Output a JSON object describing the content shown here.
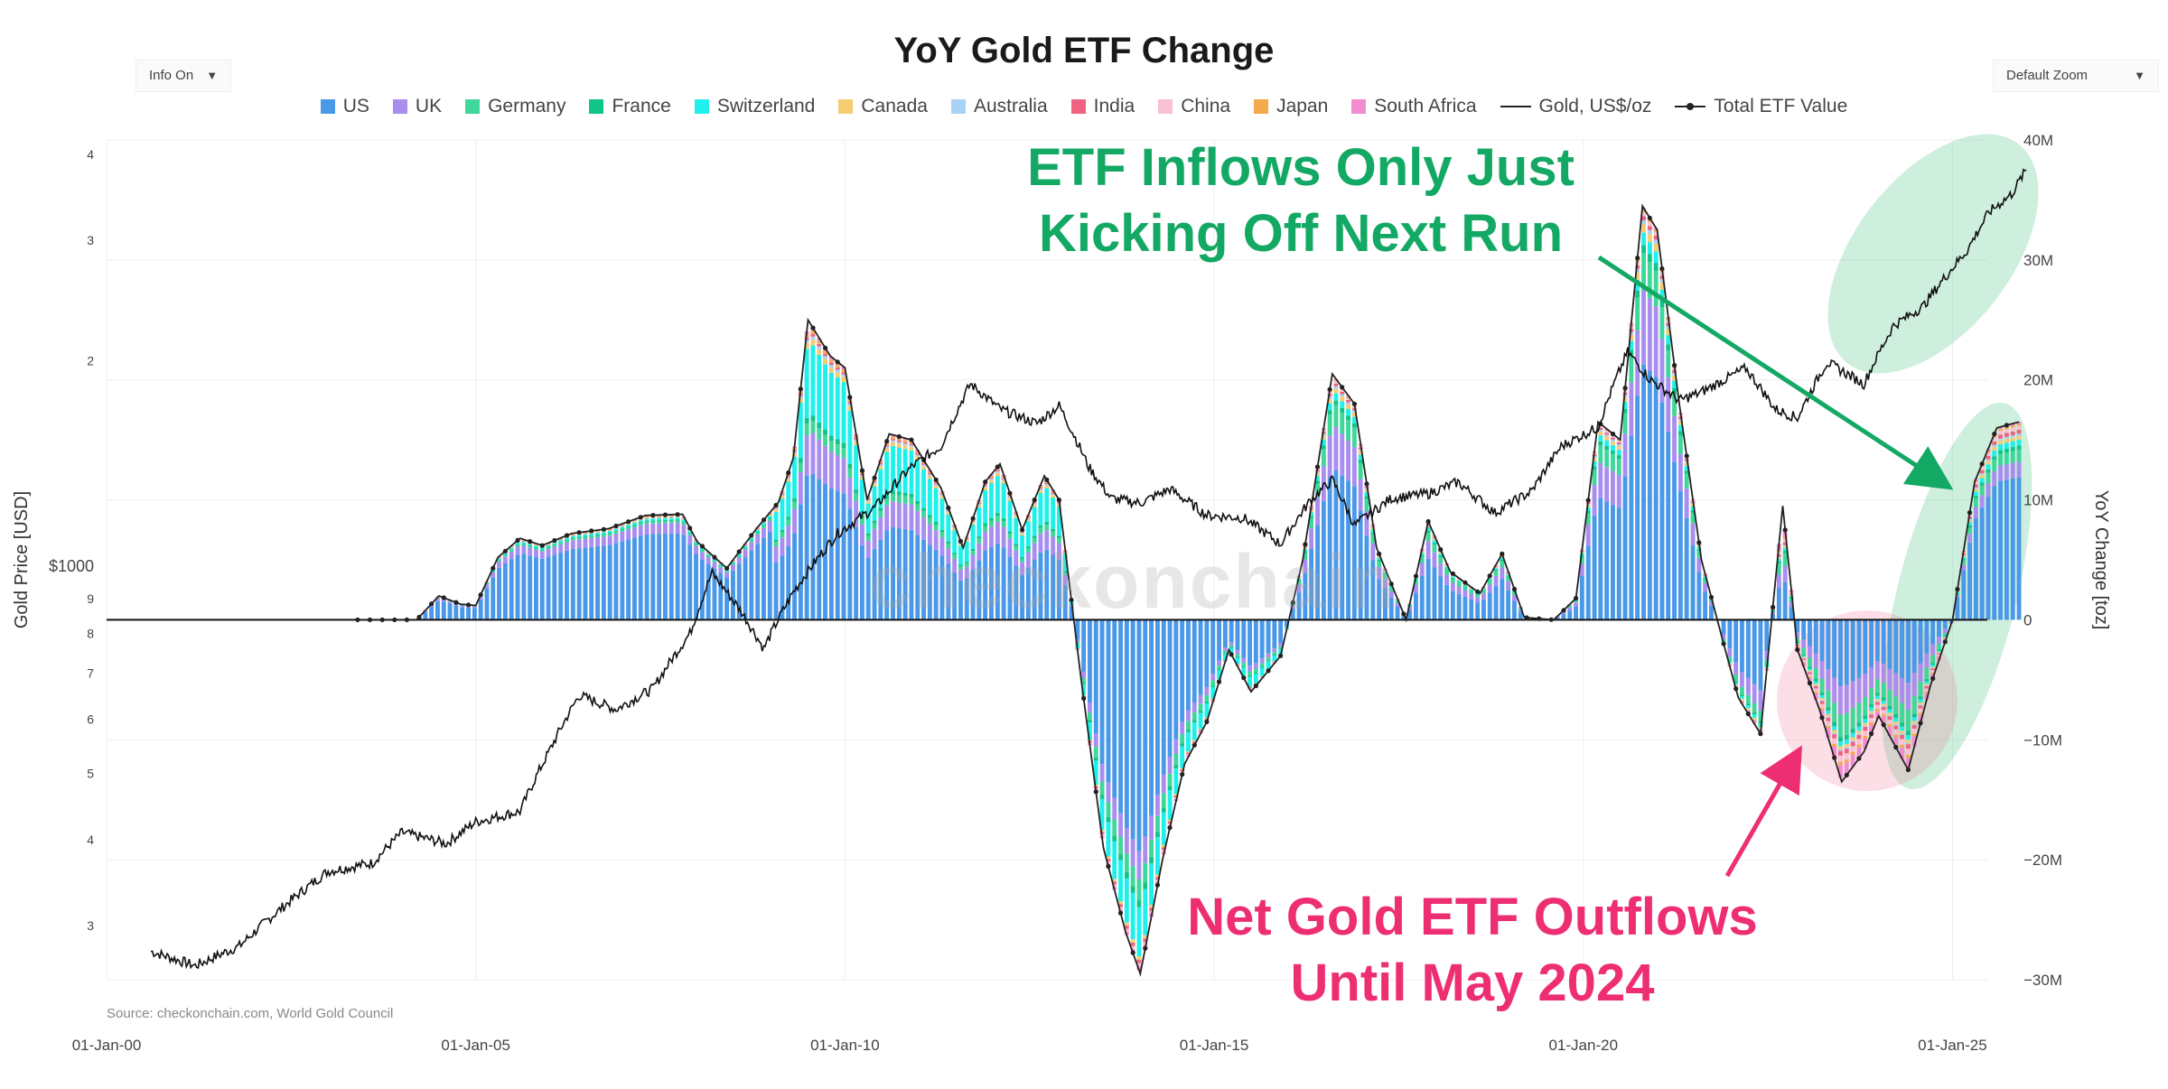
{
  "title": "YoY Gold ETF Change",
  "controls": {
    "info": "Info On",
    "zoom": "Default Zoom"
  },
  "legend": [
    {
      "name": "US",
      "color": "#4a98e8",
      "kind": "bar"
    },
    {
      "name": "UK",
      "color": "#a98ef0",
      "kind": "bar"
    },
    {
      "name": "Germany",
      "color": "#3fd79a",
      "kind": "bar"
    },
    {
      "name": "France",
      "color": "#10c48a",
      "kind": "bar"
    },
    {
      "name": "Switzerland",
      "color": "#1ff0ec",
      "kind": "bar"
    },
    {
      "name": "Canada",
      "color": "#f6cc72",
      "kind": "bar"
    },
    {
      "name": "Australia",
      "color": "#a8d2f6",
      "kind": "bar"
    },
    {
      "name": "India",
      "color": "#f06282",
      "kind": "bar"
    },
    {
      "name": "China",
      "color": "#f8c2d2",
      "kind": "bar"
    },
    {
      "name": "Japan",
      "color": "#f2aa4c",
      "kind": "bar"
    },
    {
      "name": "South Africa",
      "color": "#f28cd0",
      "kind": "bar"
    },
    {
      "name": "Gold, US$/oz",
      "color": "#222222",
      "kind": "line"
    },
    {
      "name": "Total ETF Value",
      "color": "#222222",
      "kind": "line-marker"
    }
  ],
  "annotations": {
    "inflows_line1": "ETF Inflows Only Just",
    "inflows_line2": "Kicking Off Next Run",
    "inflows_color": "#14a865",
    "outflows_line1": "Net Gold ETF Outflows",
    "outflows_line2": "Until May 2024",
    "outflows_color": "#ee2e72"
  },
  "watermark": "checkonchain",
  "source": "Source: checkonchain.com, World Gold Council",
  "chart_data": {
    "type": "bar",
    "title": "YoY Gold ETF Change",
    "x_ticks": [
      "01-Jan-00",
      "01-Jan-05",
      "01-Jan-10",
      "01-Jan-15",
      "01-Jan-20",
      "01-Jan-25"
    ],
    "x_range": [
      "2000-01-01",
      "2026-02-01"
    ],
    "y_left": {
      "label": "Gold Price [USD]",
      "scale": "log",
      "range": [
        250,
        4200
      ],
      "ticks": [
        {
          "v": 300,
          "t": "3"
        },
        {
          "v": 400,
          "t": "4"
        },
        {
          "v": 500,
          "t": "5"
        },
        {
          "v": 600,
          "t": "6"
        },
        {
          "v": 700,
          "t": "7"
        },
        {
          "v": 800,
          "t": "8"
        },
        {
          "v": 900,
          "t": "9"
        },
        {
          "v": 1000,
          "t": "$1000"
        },
        {
          "v": 2000,
          "t": "2"
        },
        {
          "v": 3000,
          "t": "3"
        },
        {
          "v": 4000,
          "t": "4"
        }
      ]
    },
    "y_right": {
      "label": "YoY Change [toz]",
      "range": [
        -30000000,
        40000000
      ],
      "ticks": [
        {
          "v": 40000000,
          "t": "40M"
        },
        {
          "v": 30000000,
          "t": "30M"
        },
        {
          "v": 20000000,
          "t": "20M"
        },
        {
          "v": 10000000,
          "t": "10M"
        },
        {
          "v": 0,
          "t": "0"
        },
        {
          "v": -10000000,
          "t": "−10M"
        },
        {
          "v": -20000000,
          "t": "−20M"
        },
        {
          "v": -30000000,
          "t": "−30M"
        }
      ]
    },
    "grid": true,
    "legend_position": "top-center",
    "total_etf_change": [
      [
        2003.4,
        0
      ],
      [
        2004.2,
        0
      ],
      [
        2004.5,
        2000000
      ],
      [
        2004.8,
        1300000
      ],
      [
        2005.0,
        1200000
      ],
      [
        2005.3,
        5200000
      ],
      [
        2005.6,
        6800000
      ],
      [
        2005.9,
        6200000
      ],
      [
        2006.3,
        7200000
      ],
      [
        2006.8,
        7600000
      ],
      [
        2007.3,
        8700000
      ],
      [
        2007.8,
        8800000
      ],
      [
        2008.0,
        6500000
      ],
      [
        2008.4,
        4300000
      ],
      [
        2008.8,
        7600000
      ],
      [
        2009.1,
        9800000
      ],
      [
        2009.3,
        13500000
      ],
      [
        2009.5,
        25000000
      ],
      [
        2009.8,
        22000000
      ],
      [
        2010.0,
        21000000
      ],
      [
        2010.3,
        10000000
      ],
      [
        2010.6,
        15500000
      ],
      [
        2010.9,
        15000000
      ],
      [
        2011.3,
        11000000
      ],
      [
        2011.6,
        6000000
      ],
      [
        2011.9,
        11500000
      ],
      [
        2012.1,
        13000000
      ],
      [
        2012.4,
        7500000
      ],
      [
        2012.7,
        12000000
      ],
      [
        2012.9,
        10000000
      ],
      [
        2013.2,
        -5000000
      ],
      [
        2013.5,
        -19000000
      ],
      [
        2013.8,
        -26000000
      ],
      [
        2014.0,
        -29500000
      ],
      [
        2014.3,
        -20000000
      ],
      [
        2014.6,
        -12000000
      ],
      [
        2014.9,
        -8500000
      ],
      [
        2015.2,
        -2500000
      ],
      [
        2015.5,
        -6000000
      ],
      [
        2015.9,
        -3000000
      ],
      [
        2016.2,
        5000000
      ],
      [
        2016.6,
        20500000
      ],
      [
        2016.9,
        18000000
      ],
      [
        2017.2,
        6000000
      ],
      [
        2017.6,
        0
      ],
      [
        2017.9,
        8200000
      ],
      [
        2018.2,
        4000000
      ],
      [
        2018.6,
        2200000
      ],
      [
        2018.9,
        5500000
      ],
      [
        2019.2,
        200000
      ],
      [
        2019.6,
        0
      ],
      [
        2019.9,
        1800000
      ],
      [
        2020.2,
        16500000
      ],
      [
        2020.5,
        15000000
      ],
      [
        2020.8,
        34500000
      ],
      [
        2021.0,
        32500000
      ],
      [
        2021.3,
        18000000
      ],
      [
        2021.6,
        5000000
      ],
      [
        2021.9,
        -2000000
      ],
      [
        2022.1,
        -6500000
      ],
      [
        2022.4,
        -9500000
      ],
      [
        2022.7,
        9500000
      ],
      [
        2022.9,
        -2500000
      ],
      [
        2023.2,
        -7500000
      ],
      [
        2023.5,
        -13500000
      ],
      [
        2023.8,
        -11000000
      ],
      [
        2024.0,
        -8000000
      ],
      [
        2024.4,
        -12500000
      ],
      [
        2024.7,
        -5500000
      ],
      [
        2025.0,
        0
      ],
      [
        2025.3,
        11500000
      ],
      [
        2025.6,
        16000000
      ],
      [
        2025.9,
        16500000
      ]
    ],
    "gold_price": [
      [
        2000.6,
        275
      ],
      [
        2001.2,
        262
      ],
      [
        2001.8,
        280
      ],
      [
        2002.4,
        320
      ],
      [
        2003.0,
        360
      ],
      [
        2003.6,
        370
      ],
      [
        2004.0,
        410
      ],
      [
        2004.6,
        395
      ],
      [
        2005.0,
        425
      ],
      [
        2005.6,
        440
      ],
      [
        2006.0,
        540
      ],
      [
        2006.4,
        650
      ],
      [
        2006.9,
        620
      ],
      [
        2007.4,
        665
      ],
      [
        2007.9,
        800
      ],
      [
        2008.2,
        980
      ],
      [
        2008.6,
        860
      ],
      [
        2008.9,
        760
      ],
      [
        2009.3,
        920
      ],
      [
        2009.9,
        1120
      ],
      [
        2010.4,
        1220
      ],
      [
        2010.9,
        1400
      ],
      [
        2011.3,
        1500
      ],
      [
        2011.7,
        1850
      ],
      [
        2012.1,
        1700
      ],
      [
        2012.6,
        1620
      ],
      [
        2012.9,
        1720
      ],
      [
        2013.3,
        1400
      ],
      [
        2013.6,
        1260
      ],
      [
        2014.0,
        1240
      ],
      [
        2014.4,
        1300
      ],
      [
        2014.9,
        1190
      ],
      [
        2015.4,
        1180
      ],
      [
        2015.9,
        1080
      ],
      [
        2016.3,
        1250
      ],
      [
        2016.6,
        1340
      ],
      [
        2016.9,
        1150
      ],
      [
        2017.4,
        1260
      ],
      [
        2017.9,
        1280
      ],
      [
        2018.3,
        1330
      ],
      [
        2018.8,
        1200
      ],
      [
        2019.3,
        1290
      ],
      [
        2019.7,
        1500
      ],
      [
        2020.2,
        1600
      ],
      [
        2020.6,
        2060
      ],
      [
        2020.9,
        1880
      ],
      [
        2021.3,
        1750
      ],
      [
        2021.6,
        1800
      ],
      [
        2022.2,
        1950
      ],
      [
        2022.6,
        1700
      ],
      [
        2022.9,
        1650
      ],
      [
        2023.3,
        1990
      ],
      [
        2023.8,
        1850
      ],
      [
        2024.2,
        2250
      ],
      [
        2024.6,
        2400
      ],
      [
        2024.9,
        2650
      ],
      [
        2025.2,
        2900
      ],
      [
        2025.5,
        3300
      ],
      [
        2025.8,
        3500
      ],
      [
        2026.0,
        3800
      ]
    ]
  }
}
